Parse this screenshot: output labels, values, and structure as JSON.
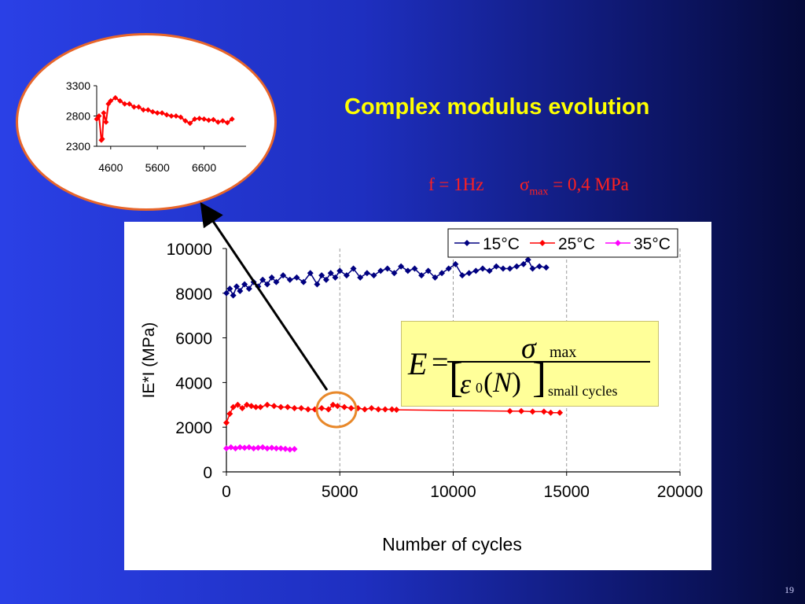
{
  "slide": {
    "title": "Complex modulus evolution",
    "freq": "f = 1Hz",
    "sigma_symbol": "σ",
    "sigma_sub": "max",
    "sigma_value": " = 0,4 MPa",
    "page_number": "19",
    "colors": {
      "title": "#ffff00",
      "params": "#ff2020"
    }
  },
  "formula": {
    "lhs": "E",
    "eq": "=",
    "numerator_symbol": "σ",
    "numerator_sub": "max",
    "lbracket": "[",
    "eps": "ε",
    "eps_sub": "0",
    "open_paren": "(",
    "N": "N",
    "close_paren": ")",
    "rbracket": "]",
    "denominator_sub": "small cycles"
  },
  "chart_data": [
    {
      "type": "scatter",
      "title": "",
      "xlabel": "Number of cycles",
      "ylabel": "IE*I (MPa)",
      "xlim": [
        0,
        20000
      ],
      "ylim": [
        0,
        10000
      ],
      "xticks": [
        0,
        5000,
        10000,
        15000,
        20000
      ],
      "yticks": [
        0,
        2000,
        4000,
        6000,
        8000,
        10000
      ],
      "grid": "vertical dashed",
      "legend_position": "top-right",
      "series": [
        {
          "name": "15°C",
          "color": "#000080",
          "marker": "diamond",
          "x": [
            0,
            150,
            300,
            450,
            600,
            800,
            1000,
            1200,
            1400,
            1600,
            1800,
            2000,
            2200,
            2500,
            2800,
            3100,
            3400,
            3700,
            4000,
            4200,
            4400,
            4600,
            4800,
            5000,
            5300,
            5600,
            5900,
            6200,
            6500,
            6800,
            7100,
            7400,
            7700,
            8000,
            8300,
            8600,
            8900,
            9200,
            9500,
            9800,
            10100,
            10400,
            10700,
            11000,
            11300,
            11600,
            11900,
            12200,
            12500,
            12800,
            13100,
            13300,
            13500,
            13800,
            14100
          ],
          "y": [
            8000,
            8200,
            7900,
            8300,
            8100,
            8400,
            8200,
            8500,
            8300,
            8600,
            8400,
            8700,
            8500,
            8800,
            8600,
            8700,
            8500,
            8900,
            8400,
            8800,
            8600,
            8900,
            8700,
            9000,
            8800,
            9100,
            8700,
            8900,
            8800,
            9000,
            9100,
            8900,
            9200,
            9000,
            9100,
            8800,
            9000,
            8700,
            8900,
            9100,
            9300,
            8800,
            8900,
            9000,
            9100,
            9000,
            9200,
            9100,
            9100,
            9200,
            9300,
            9500,
            9100,
            9200,
            9150
          ]
        },
        {
          "name": "25°C",
          "color": "#ff0000",
          "marker": "diamond",
          "x": [
            0,
            150,
            300,
            500,
            700,
            900,
            1100,
            1300,
            1500,
            1800,
            2100,
            2400,
            2700,
            3000,
            3300,
            3600,
            3900,
            4200,
            4500,
            4700,
            4900,
            5200,
            5500,
            5800,
            6100,
            6400,
            6700,
            7000,
            7300,
            7500,
            12500,
            13000,
            13500,
            14000,
            14300,
            14700
          ],
          "y": [
            2200,
            2600,
            2900,
            3000,
            2850,
            3000,
            2950,
            2900,
            2900,
            3000,
            2950,
            2900,
            2900,
            2850,
            2850,
            2800,
            2800,
            2850,
            2800,
            3000,
            2950,
            2900,
            2850,
            2850,
            2800,
            2850,
            2800,
            2800,
            2800,
            2780,
            2720,
            2720,
            2700,
            2700,
            2650,
            2650
          ]
        },
        {
          "name": "35°C",
          "color": "#ff00ff",
          "marker": "diamond",
          "x": [
            0,
            200,
            400,
            600,
            800,
            1000,
            1200,
            1400,
            1600,
            1800,
            2000,
            2200,
            2400,
            2600,
            2800,
            3000
          ],
          "y": [
            1050,
            1100,
            1050,
            1100,
            1080,
            1100,
            1050,
            1080,
            1100,
            1050,
            1080,
            1050,
            1050,
            1030,
            1000,
            1020
          ]
        }
      ]
    },
    {
      "type": "line",
      "title": "",
      "xlabel": "",
      "ylabel": "",
      "xlim": [
        4300,
        7500
      ],
      "ylim": [
        2300,
        3300
      ],
      "xticks": [
        4600,
        5600,
        6600
      ],
      "yticks": [
        2300,
        2800,
        3300
      ],
      "series": [
        {
          "name": "",
          "color": "#ff0000",
          "marker": "diamond",
          "x": [
            4300,
            4350,
            4400,
            4420,
            4450,
            4500,
            4550,
            4600,
            4700,
            4800,
            4900,
            5000,
            5100,
            5200,
            5300,
            5400,
            5500,
            5600,
            5700,
            5800,
            5900,
            6000,
            6100,
            6200,
            6300,
            6400,
            6500,
            6600,
            6700,
            6800,
            6900,
            7000,
            7100,
            7200
          ],
          "y": [
            2750,
            2800,
            2400,
            2420,
            2850,
            2700,
            3000,
            3050,
            3100,
            3050,
            3000,
            3000,
            2950,
            2950,
            2900,
            2900,
            2870,
            2850,
            2850,
            2820,
            2800,
            2800,
            2780,
            2720,
            2680,
            2750,
            2760,
            2750,
            2730,
            2740,
            2700,
            2720,
            2690,
            2750
          ]
        }
      ]
    }
  ]
}
